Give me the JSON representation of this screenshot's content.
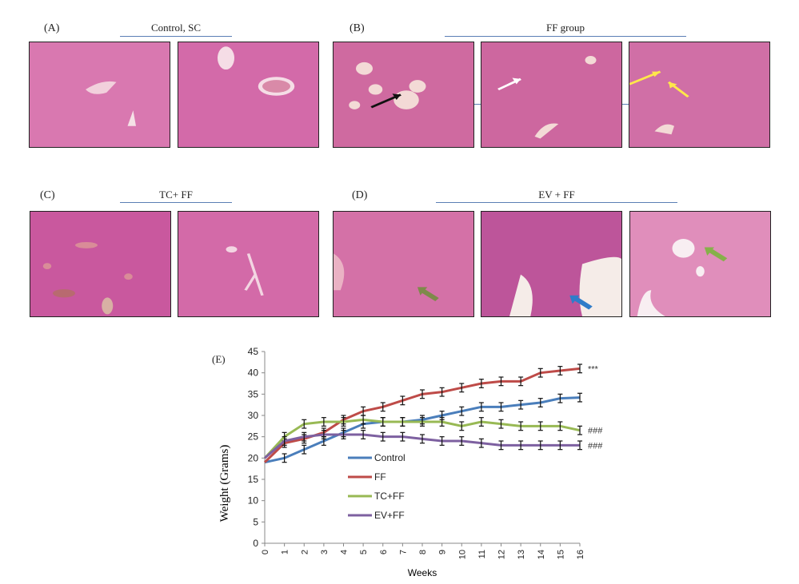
{
  "panels": {
    "A": {
      "label": "(A)",
      "title": "Control, SC"
    },
    "B": {
      "label": "(B)",
      "title": "FF group"
    },
    "C": {
      "label": "(C)",
      "title": "TC+ FF"
    },
    "D": {
      "label": "(D)",
      "title": "EV + FF"
    },
    "E": {
      "label": "(E)"
    }
  },
  "micrographs": [
    {
      "panel": "A",
      "index": 1,
      "arrows": []
    },
    {
      "panel": "A",
      "index": 2,
      "arrows": []
    },
    {
      "panel": "B",
      "index": 1,
      "arrows": [
        "black"
      ]
    },
    {
      "panel": "B",
      "index": 2,
      "arrows": [
        "white"
      ]
    },
    {
      "panel": "B",
      "index": 3,
      "arrows": [
        "yellow",
        "yellow"
      ]
    },
    {
      "panel": "C",
      "index": 1,
      "arrows": []
    },
    {
      "panel": "C",
      "index": 2,
      "arrows": []
    },
    {
      "panel": "D",
      "index": 1,
      "arrows": [
        "green"
      ]
    },
    {
      "panel": "D",
      "index": 2,
      "arrows": [
        "blue"
      ]
    },
    {
      "panel": "D",
      "index": 3,
      "arrows": [
        "green"
      ]
    }
  ],
  "colors": {
    "tissue": "#d86aa8",
    "tissue_dark": "#b94d93",
    "Control": "#4a7ebb",
    "FF": "#be4b48",
    "TC+FF": "#98b954",
    "EV+FF": "#7d60a0"
  },
  "chart_data": {
    "type": "line",
    "title": "",
    "xlabel": "Weeks",
    "ylabel": "Weight  (Grams)",
    "x": [
      0,
      1,
      2,
      3,
      4,
      5,
      6,
      7,
      8,
      9,
      10,
      11,
      12,
      13,
      14,
      15,
      16
    ],
    "xticks": [
      "0",
      "1",
      "2",
      "3",
      "4",
      "5",
      "6",
      "7",
      "8",
      "9",
      "10",
      "11",
      "12",
      "13",
      "14",
      "15",
      "16"
    ],
    "ylim": [
      0,
      45
    ],
    "yticks": [
      0,
      5,
      10,
      15,
      20,
      25,
      30,
      35,
      40,
      45
    ],
    "grid": false,
    "error_bars": true,
    "legend_position": "inside-center-left",
    "series": [
      {
        "name": "Control",
        "color": "#4a7ebb",
        "values": [
          19,
          20,
          22,
          24,
          26,
          28,
          28.5,
          28.5,
          29,
          30,
          31,
          32,
          32,
          32.5,
          33,
          34,
          34.2
        ]
      },
      {
        "name": "FF",
        "color": "#be4b48",
        "values": [
          19,
          23.5,
          24.5,
          26,
          29,
          31,
          32,
          33.5,
          35,
          35.5,
          36.5,
          37.5,
          38,
          38,
          40,
          40.5,
          41
        ]
      },
      {
        "name": "TC+FF",
        "color": "#98b954",
        "values": [
          20,
          25,
          28,
          28.5,
          28.5,
          29,
          28.5,
          28.5,
          28.5,
          28.5,
          27.5,
          28.5,
          28,
          27.5,
          27.5,
          27.5,
          26.5
        ]
      },
      {
        "name": "EV+FF",
        "color": "#7d60a0",
        "values": [
          20,
          24,
          25,
          25.5,
          25.5,
          25.5,
          25,
          25,
          24.5,
          24,
          24,
          23.5,
          23,
          23,
          23,
          23,
          23
        ]
      }
    ],
    "annotations": [
      {
        "series": "FF",
        "text": "***"
      },
      {
        "series": "TC+FF",
        "text": "###"
      },
      {
        "series": "EV+FF",
        "text": "###"
      }
    ]
  }
}
